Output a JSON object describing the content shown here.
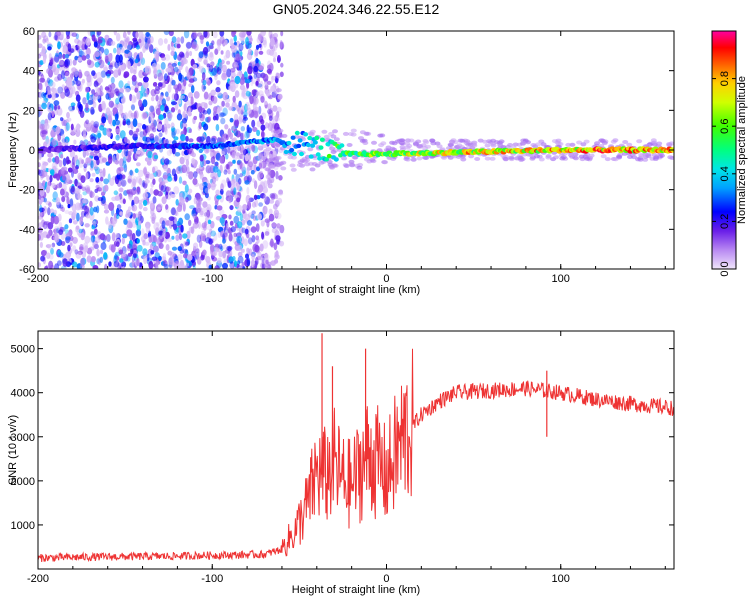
{
  "title": "GN05.2024.346.22.55.E12",
  "chart_data": [
    {
      "type": "heatmap",
      "title": "GN05.2024.346.22.55.E12",
      "xlabel": "Height of straight line (km)",
      "ylabel": "Frequency (Hz)",
      "xlim": [
        -200,
        165
      ],
      "ylim": [
        -60,
        60
      ],
      "xticks": [
        -200,
        -100,
        0,
        100
      ],
      "yticks": [
        -60,
        -40,
        -20,
        0,
        20,
        40,
        60
      ],
      "colorbar": {
        "label": "Normalized spectral amplitude",
        "range": [
          0,
          1
        ],
        "ticks": [
          0.0,
          0.2,
          0.4,
          0.6,
          0.8
        ],
        "colormap": [
          "#e8d8f8",
          "#9a5cf0",
          "#3a00e0",
          "#0000ff",
          "#00c8ff",
          "#00ff80",
          "#80ff00",
          "#ffff00",
          "#ff8000",
          "#ff0000",
          "#ff00c0"
        ]
      },
      "description_points": [
        {
          "x": -200,
          "y": 0,
          "amp": 0.2
        },
        {
          "x": -150,
          "y": 2,
          "amp": 0.25
        },
        {
          "x": -100,
          "y": 2,
          "amp": 0.35
        },
        {
          "x": -65,
          "y": 5,
          "amp": 0.4
        },
        {
          "x": -45,
          "y": 3,
          "amp": 0.45
        },
        {
          "x": -30,
          "y": -2,
          "amp": 0.6
        },
        {
          "x": 0,
          "y": -2,
          "amp": 0.75
        },
        {
          "x": 50,
          "y": -1,
          "amp": 0.85
        },
        {
          "x": 100,
          "y": 0,
          "amp": 0.9
        },
        {
          "x": 165,
          "y": 0,
          "amp": 0.95
        }
      ]
    },
    {
      "type": "line",
      "xlabel": "Height of straight line (km)",
      "ylabel": "SNR (10 * v/v)",
      "xlim": [
        -200,
        165
      ],
      "ylim": [
        0,
        5400
      ],
      "xticks": [
        -200,
        -100,
        0,
        100
      ],
      "yticks": [
        1000,
        2000,
        3000,
        4000,
        5000
      ],
      "color": "#ee3333",
      "x": [
        -200,
        -175,
        -150,
        -125,
        -100,
        -85,
        -70,
        -60,
        -52,
        -45,
        -40,
        -35,
        -30,
        -25,
        -20,
        -15,
        -10,
        -5,
        0,
        5,
        10,
        20,
        30,
        40,
        60,
        80,
        100,
        120,
        140,
        165
      ],
      "values": [
        250,
        270,
        280,
        290,
        310,
        320,
        330,
        450,
        900,
        1500,
        2200,
        2100,
        2400,
        2000,
        1900,
        2300,
        2600,
        2400,
        2100,
        2600,
        3000,
        3500,
        3800,
        4000,
        4050,
        4100,
        4000,
        3850,
        3750,
        3650
      ],
      "spikes": [
        {
          "x": -37,
          "y": 5350
        },
        {
          "x": -31,
          "y": 4600
        },
        {
          "x": -12,
          "y": 5000
        },
        {
          "x": 92,
          "y": 4500
        },
        {
          "x": 92,
          "y": 3000
        }
      ]
    }
  ]
}
